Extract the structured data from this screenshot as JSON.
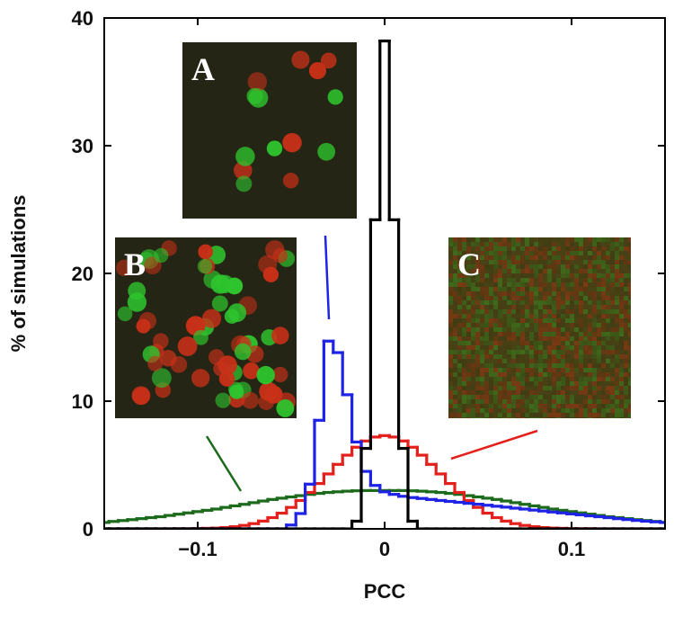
{
  "chart_data": {
    "type": "histogram",
    "xlabel": "PCC",
    "ylabel": "% of simulations",
    "xlim": [
      -0.15,
      0.15
    ],
    "ylim": [
      0,
      40
    ],
    "xticks": [
      {
        "value": -0.1,
        "label": "−0.1"
      },
      0,
      0.1
    ],
    "yticks": [
      0,
      10,
      20,
      30,
      40
    ],
    "annotations": [
      "A",
      "B",
      "C"
    ],
    "bins": [
      -0.1525,
      -0.1475,
      -0.1425,
      -0.1375,
      -0.1325,
      -0.1275,
      -0.1225,
      -0.1175,
      -0.1125,
      -0.1075,
      -0.1025,
      -0.0975,
      -0.0925,
      -0.0875,
      -0.0825,
      -0.0775,
      -0.0725,
      -0.0675,
      -0.0625,
      -0.0575,
      -0.0525,
      -0.0475,
      -0.0425,
      -0.0375,
      -0.0325,
      -0.0275,
      -0.0225,
      -0.0175,
      -0.0125,
      -0.0075,
      -0.0025,
      0.0025,
      0.0075,
      0.0125,
      0.0175,
      0.0225,
      0.0275,
      0.0325,
      0.0375,
      0.0425,
      0.0475,
      0.0525,
      0.0575,
      0.0625,
      0.0675,
      0.0725,
      0.0775,
      0.0825,
      0.0875,
      0.0925,
      0.0975,
      0.1025,
      0.1075,
      0.1125,
      0.1175,
      0.1225,
      0.1275,
      0.1325,
      0.1375,
      0.1425,
      0.1475,
      0.1525
    ],
    "series": [
      {
        "color": "#1c6b1c",
        "values": [
          0.5,
          0.58,
          0.65,
          0.72,
          0.8,
          0.88,
          0.95,
          1.05,
          1.15,
          1.25,
          1.35,
          1.45,
          1.55,
          1.68,
          1.8,
          1.92,
          2.05,
          2.18,
          2.3,
          2.4,
          2.5,
          2.6,
          2.7,
          2.78,
          2.85,
          2.9,
          2.95,
          2.98,
          3.0,
          3.0,
          3.0,
          3.0,
          3.0,
          2.98,
          2.95,
          2.9,
          2.85,
          2.78,
          2.7,
          2.6,
          2.5,
          2.4,
          2.3,
          2.18,
          2.05,
          1.92,
          1.8,
          1.68,
          1.55,
          1.45,
          1.35,
          1.25,
          1.15,
          1.05,
          0.95,
          0.88,
          0.8,
          0.72,
          0.65,
          0.58,
          0.5
        ]
      },
      {
        "color": "#e3201b",
        "values": [
          0,
          0,
          0,
          0,
          0,
          0,
          0,
          0,
          0.01,
          0.01,
          0.02,
          0.04,
          0.06,
          0.1,
          0.17,
          0.27,
          0.41,
          0.61,
          0.88,
          1.23,
          1.68,
          2.22,
          2.85,
          3.55,
          4.3,
          5.05,
          5.77,
          6.39,
          6.88,
          7.19,
          7.3,
          7.19,
          6.88,
          6.39,
          5.77,
          5.05,
          4.3,
          3.55,
          2.85,
          2.22,
          1.68,
          1.23,
          0.88,
          0.61,
          0.41,
          0.27,
          0.17,
          0.1,
          0.06,
          0.04,
          0.02,
          0.01,
          0.01,
          0,
          0,
          0,
          0,
          0,
          0,
          0,
          0
        ]
      },
      {
        "color": "#1f23e6",
        "values": [
          0,
          0,
          0,
          0,
          0,
          0,
          0,
          0,
          0,
          0,
          0,
          0,
          0,
          0,
          0,
          0,
          0,
          0,
          0,
          0,
          0.3,
          1.2,
          3.5,
          8.5,
          14.7,
          13.8,
          10.5,
          6.8,
          4.5,
          3.4,
          2.9,
          2.7,
          2.55,
          2.45,
          2.38,
          2.3,
          2.22,
          2.15,
          2.08,
          2.0,
          1.93,
          1.85,
          1.77,
          1.7,
          1.62,
          1.55,
          1.47,
          1.4,
          1.32,
          1.25,
          1.17,
          1.1,
          1.02,
          0.95,
          0.88,
          0.8,
          0.73,
          0.66,
          0.6,
          0.55,
          0.5
        ]
      },
      {
        "color": "#000000",
        "values": [
          0,
          0,
          0,
          0,
          0,
          0,
          0,
          0,
          0,
          0,
          0,
          0,
          0,
          0,
          0,
          0,
          0,
          0,
          0,
          0,
          0,
          0,
          0,
          0,
          0,
          0,
          0,
          0.6,
          6.3,
          24.2,
          38.2,
          24.2,
          6.3,
          0.6,
          0,
          0,
          0,
          0,
          0,
          0,
          0,
          0,
          0,
          0,
          0,
          0,
          0,
          0,
          0,
          0,
          0,
          0,
          0,
          0,
          0,
          0,
          0,
          0,
          0,
          0,
          0
        ]
      }
    ]
  }
}
